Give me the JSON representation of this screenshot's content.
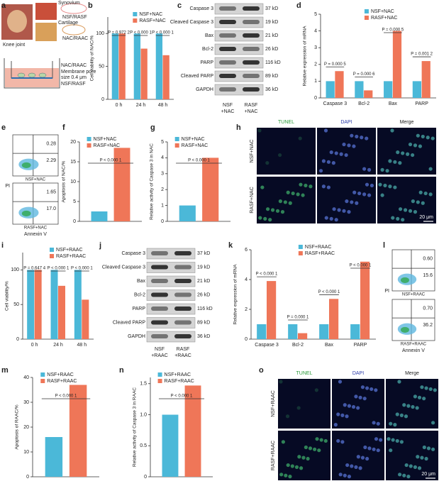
{
  "panel_labels": [
    "a",
    "b",
    "c",
    "d",
    "e",
    "f",
    "g",
    "h",
    "i",
    "j",
    "k",
    "l",
    "m",
    "n",
    "o"
  ],
  "diagram": {
    "knee": "Knee joint",
    "synovium": "Synovium",
    "cartilage": "Cartilage",
    "cell_top": "NSF/RASF",
    "cell_bottom": "NAC/RAAC",
    "insert_label": "NAC/RAAC",
    "membrane": [
      "Membrane pore",
      "size 0.4 μm"
    ],
    "well_label": "NSF/RASF"
  },
  "chart_data": [
    {
      "type": "bar",
      "ylabel": "Cell viability of NAC/%",
      "categories": [
        "0 h",
        "24 h",
        "48 h"
      ],
      "series": [
        {
          "name": "NSF+NAC",
          "color": "#4bb8d8",
          "values": [
            100,
            100,
            100
          ]
        },
        {
          "name": "RASF+NAC",
          "color": "#ef7658",
          "values": [
            100,
            77,
            67
          ]
        }
      ],
      "annotations": [
        "P = 0.972 2",
        "P < 0.000 1",
        "P < 0.000 1"
      ],
      "ylim": [
        0,
        125
      ],
      "yticks": [
        0,
        50,
        100
      ]
    },
    {
      "type": "bar",
      "ylabel": "Relative expression of mRNA",
      "categories": [
        "Caspase 3",
        "Bcl-2",
        "Bax",
        "PARP"
      ],
      "series": [
        {
          "name": "NSF+NAC",
          "color": "#4bb8d8",
          "values": [
            1,
            1,
            1,
            1
          ]
        },
        {
          "name": "RASF+NAC",
          "color": "#ef7658",
          "values": [
            1.6,
            0.45,
            4.0,
            2.2
          ]
        }
      ],
      "annotations": [
        "P = 0.000 5",
        "P = 0.000 6",
        "P = 0.000 5",
        "P = 0.001 2"
      ],
      "ylim": [
        0,
        5
      ],
      "yticks": [
        0,
        1,
        2,
        3,
        4,
        5
      ]
    },
    {
      "type": "bar",
      "ylabel": "Apoptosis of NAC/%",
      "categories": [
        null
      ],
      "series": [
        {
          "name": "NSF+NAC",
          "color": "#4bb8d8",
          "values": [
            2.5
          ]
        },
        {
          "name": "RASF+NAC",
          "color": "#ef7658",
          "values": [
            18.5
          ]
        }
      ],
      "annotations": [
        "P < 0.000 1"
      ],
      "ylim": [
        0,
        20
      ],
      "yticks": [
        0,
        5,
        10,
        15,
        20
      ]
    },
    {
      "type": "bar",
      "ylabel": "Relative activity of Caspase 3 in NAC",
      "categories": [
        null
      ],
      "series": [
        {
          "name": "NSF+NAC",
          "color": "#4bb8d8",
          "values": [
            1.0
          ]
        },
        {
          "name": "RASF+NAC",
          "color": "#ef7658",
          "values": [
            4.0
          ]
        }
      ],
      "annotations": [
        "P < 0.000 1"
      ],
      "ylim": [
        0,
        5
      ],
      "yticks": [
        0,
        1,
        2,
        3,
        4,
        5
      ]
    },
    {
      "type": "bar",
      "ylabel": "Cell viability/%",
      "categories": [
        "0 h",
        "24 h",
        "48 h"
      ],
      "series": [
        {
          "name": "NSF+RAAC",
          "color": "#4bb8d8",
          "values": [
            100,
            100,
            100
          ]
        },
        {
          "name": "RASF+RAAC",
          "color": "#ef7658",
          "values": [
            100,
            77,
            57
          ]
        }
      ],
      "annotations": [
        "P = 0.647 4",
        "P < 0.000 1",
        "P < 0.000 1"
      ],
      "ylim": [
        0,
        125
      ],
      "yticks": [
        0,
        50,
        100
      ]
    },
    {
      "type": "bar",
      "ylabel": "Relative expression of mRNA",
      "categories": [
        "Caspase 3",
        "Bcl-2",
        "Bax",
        "PARP"
      ],
      "series": [
        {
          "name": "NSF+RAAC",
          "color": "#4bb8d8",
          "values": [
            1,
            1,
            1,
            1
          ]
        },
        {
          "name": "RASF+RAAC",
          "color": "#ef7658",
          "values": [
            3.9,
            0.4,
            2.7,
            5.2
          ]
        }
      ],
      "annotations": [
        "P < 0.000 1",
        "P = 0.000 1",
        "P < 0.000 1",
        "P < 0.000 1"
      ],
      "ylim": [
        0,
        6
      ],
      "yticks": [
        0,
        2,
        4,
        6
      ]
    },
    {
      "type": "bar",
      "ylabel": "Apoptosis of RAAC/%",
      "categories": [
        null
      ],
      "series": [
        {
          "name": "NSF+RAAC",
          "color": "#4bb8d8",
          "values": [
            16
          ]
        },
        {
          "name": "RASF+RAAC",
          "color": "#ef7658",
          "values": [
            37
          ]
        }
      ],
      "annotations": [
        "P < 0.000 1"
      ],
      "ylim": [
        0,
        40
      ],
      "yticks": [
        0,
        10,
        20,
        30,
        40
      ]
    },
    {
      "type": "bar",
      "ylabel": "Relative activity of Caspase 3 in RAAC",
      "categories": [
        null
      ],
      "series": [
        {
          "name": "NSF+RAAC",
          "color": "#4bb8d8",
          "values": [
            1.0
          ]
        },
        {
          "name": "RASF+RAAC",
          "color": "#ef7658",
          "values": [
            1.47
          ]
        }
      ],
      "annotations": [
        "P < 0.000 1"
      ],
      "ylim": [
        0,
        1.6
      ],
      "yticks": [
        0,
        0.5,
        {
          "value": 1.0,
          "label": "1.0"
        },
        1.5
      ]
    }
  ],
  "blots": [
    {
      "rows": [
        {
          "protein": "Caspase 3",
          "size": "37 kD"
        },
        {
          "protein": "Cleaved Caspase 3",
          "size": "19 kD"
        },
        {
          "protein": "Bax",
          "size": "21 kD"
        },
        {
          "protein": "Bcl-2",
          "size": "26 kD"
        },
        {
          "protein": "PARP",
          "size": "116 kD"
        },
        {
          "protein": "Cleaved PARP",
          "size": "89 kD"
        },
        {
          "protein": "GAPDH",
          "size": "36 kD"
        }
      ],
      "lanes": [
        [
          "NSF",
          "+NAC"
        ],
        [
          "RASF",
          "+NAC"
        ]
      ]
    },
    {
      "rows": [
        {
          "protein": "Caspase 3",
          "size": "37 kD"
        },
        {
          "protein": "Cleaved Caspase 3",
          "size": "19 kD"
        },
        {
          "protein": "Bax",
          "size": "21 kD"
        },
        {
          "protein": "Bcl-2",
          "size": "26 kD"
        },
        {
          "protein": "PARP",
          "size": "116 kD"
        },
        {
          "protein": "Cleaved PARP",
          "size": "89 kD"
        },
        {
          "protein": "GAPDH",
          "size": "36 kD"
        }
      ],
      "lanes": [
        [
          "NSF",
          "+RAAC"
        ],
        [
          "RASF",
          "+RAAC"
        ]
      ]
    }
  ],
  "flow": [
    {
      "ylabel": "PI",
      "xlabel": "Annexin V",
      "plots": [
        {
          "label": "NSF+NAC",
          "upper": "0.28",
          "lower": "2.29"
        },
        {
          "label": "RASF+NAC",
          "upper": "1.65",
          "lower": "17.0"
        }
      ]
    },
    {
      "ylabel": "PI",
      "xlabel": "Annexin V",
      "plots": [
        {
          "label": "NSF+RAAC",
          "upper": "0.60",
          "lower": "15.6"
        },
        {
          "label": "RASF+RAAC",
          "upper": "0.70",
          "lower": "36.2"
        }
      ]
    }
  ],
  "micro": [
    {
      "columns": [
        "TUNEL",
        "DAPI",
        "Merge"
      ],
      "rows": [
        "NSF+NAC",
        "RASF+NAC"
      ],
      "scale": "20 μm"
    },
    {
      "columns": [
        "TUNEL",
        "DAPI",
        "Merge"
      ],
      "rows": [
        "NSF+RAAC",
        "RASF+RAAC"
      ],
      "scale": "20 μm"
    }
  ]
}
